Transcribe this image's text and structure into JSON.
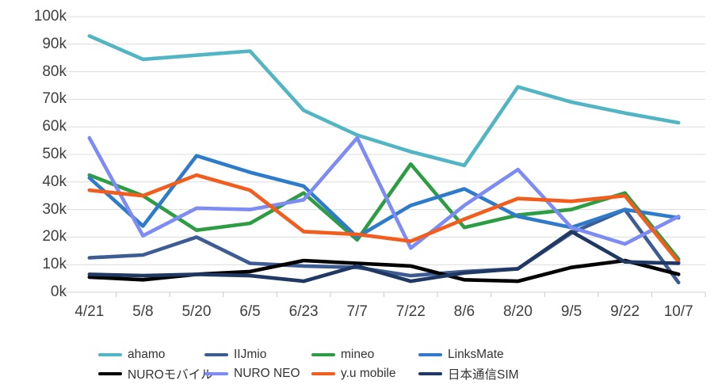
{
  "chart_data": {
    "type": "line",
    "title": "",
    "xlabel": "",
    "ylabel": "",
    "unit_suffix": "k",
    "ylim": [
      0,
      100
    ],
    "ytick_step": 10,
    "grid": true,
    "legend_position": "bottom",
    "categories": [
      "4/21",
      "5/8",
      "5/20",
      "6/5",
      "6/23",
      "7/7",
      "7/22",
      "8/6",
      "8/20",
      "9/5",
      "9/22",
      "10/7"
    ],
    "series": [
      {
        "name": "ahamo",
        "color": "#52B5C4",
        "values": [
          93,
          84.5,
          86,
          87.5,
          66,
          57,
          51,
          46,
          74.5,
          69,
          65,
          61.5
        ]
      },
      {
        "name": "IIJmio",
        "color": "#3E5C94",
        "values": [
          12.5,
          13.5,
          20,
          10.5,
          9.5,
          9,
          6,
          7.5,
          8.5,
          21.5,
          30,
          3.5
        ]
      },
      {
        "name": "mineo",
        "color": "#2D9D43",
        "values": [
          42.5,
          35,
          22.5,
          25,
          36,
          19,
          46.5,
          23.5,
          28,
          30,
          36,
          12
        ]
      },
      {
        "name": "LinksMate",
        "color": "#2E7BCB",
        "values": [
          41.5,
          24,
          49.5,
          43.5,
          38.5,
          20,
          31.5,
          37.5,
          27.5,
          23.5,
          30,
          27
        ]
      },
      {
        "name": "NUROモバイル",
        "color": "#000000",
        "values": [
          5.5,
          4.5,
          6.5,
          7.5,
          11.5,
          10.5,
          9.5,
          4.5,
          4,
          9,
          11.5,
          6.5
        ]
      },
      {
        "name": "NURO NEO",
        "color": "#7D8BF4",
        "values": [
          56,
          20.5,
          30.5,
          30,
          33.5,
          56,
          16,
          31.5,
          44.5,
          23.5,
          17.5,
          27.5
        ]
      },
      {
        "name": "y.u mobile",
        "color": "#F25C1C",
        "values": [
          37,
          35,
          42.5,
          37,
          22,
          21,
          18.5,
          26.5,
          34,
          33,
          35,
          11
        ]
      },
      {
        "name": "日本通信SIM",
        "color": "#1F3864",
        "values": [
          6.5,
          6,
          6.5,
          6,
          4,
          9.5,
          4,
          7,
          8.5,
          22,
          11,
          10.5
        ]
      }
    ]
  },
  "axis": {
    "y_tick_labels": [
      "0k",
      "10k",
      "20k",
      "30k",
      "40k",
      "50k",
      "60k",
      "70k",
      "80k",
      "90k",
      "100k"
    ]
  },
  "style_colors": {
    "gridline": "#DCDCDC",
    "axis_line": "#D2D2D2",
    "tick_mark": "#C9C9C9",
    "tick_text": "#3f3f3f",
    "legend_text": "#333333",
    "background": "#FFFFFF"
  }
}
